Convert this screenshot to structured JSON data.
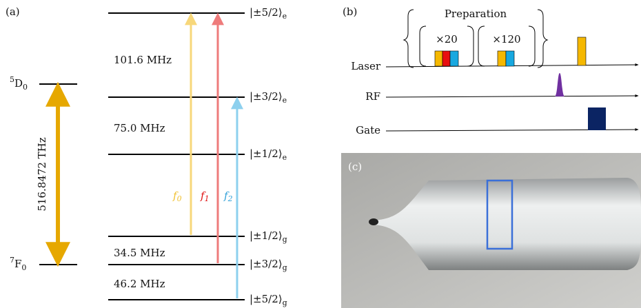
{
  "panel_a": {
    "label": "(a)",
    "upper_state": {
      "sup": "5",
      "main": "D",
      "sub": "0"
    },
    "lower_state": {
      "sup": "7",
      "main": "F",
      "sub": "0"
    },
    "transition": "516.8472 THz",
    "levels": [
      {
        "ket": "|±5/2⟩",
        "sub": "e"
      },
      {
        "ket": "|±3/2⟩",
        "sub": "e"
      },
      {
        "ket": "|±1/2⟩",
        "sub": "e"
      },
      {
        "ket": "|±1/2⟩",
        "sub": "g"
      },
      {
        "ket": "|±3/2⟩",
        "sub": "g"
      },
      {
        "ket": "|±5/2⟩",
        "sub": "g"
      }
    ],
    "splittings": [
      "101.6 MHz",
      "75.0 MHz",
      "34.5 MHz",
      "46.2 MHz"
    ],
    "frequencies": [
      {
        "main": "f",
        "sub": "0"
      },
      {
        "main": "f",
        "sub": "1"
      },
      {
        "main": "f",
        "sub": "2"
      }
    ]
  },
  "panel_b": {
    "label": "(b)",
    "group_title": "Preparation",
    "repeats": [
      "×20",
      "×120"
    ],
    "channels": [
      "Laser",
      "RF",
      "Gate"
    ]
  },
  "panel_c": {
    "label": "(c)"
  }
}
